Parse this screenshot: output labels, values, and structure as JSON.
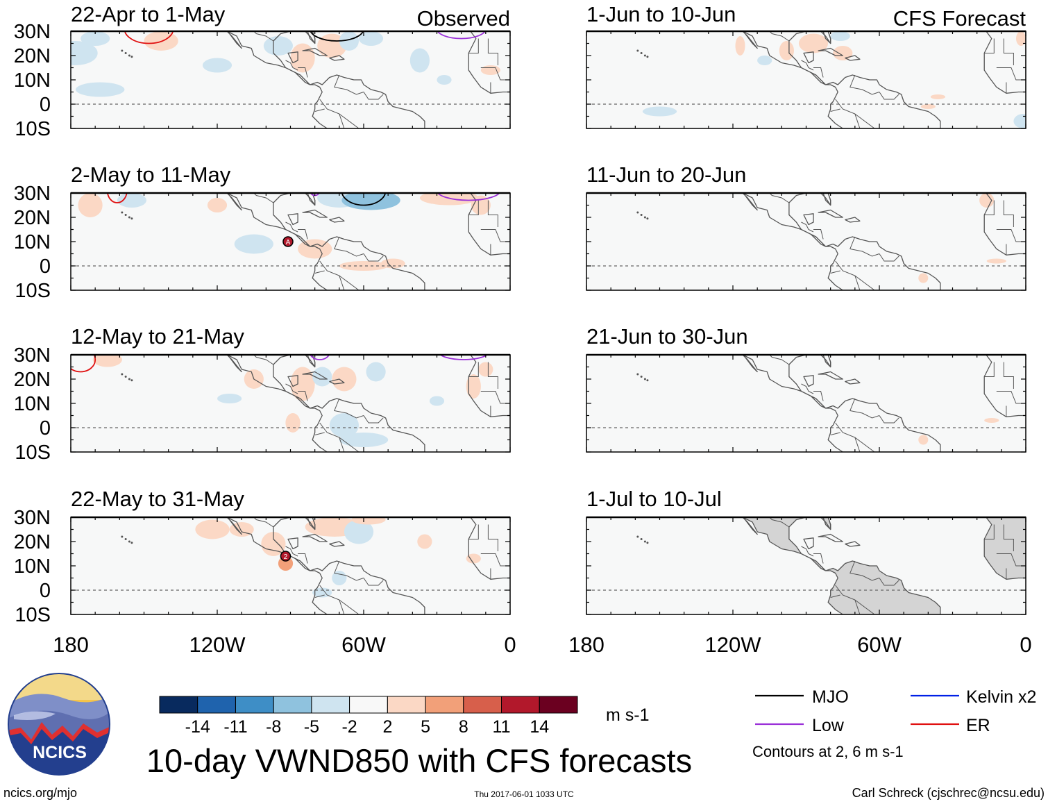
{
  "chart_data": {
    "type": "heatmap",
    "title": "10-day VWND850 with CFS forecasts",
    "variable": "VWND850",
    "units": "m s-1",
    "columns": [
      {
        "name": "Observed",
        "panels": [
          {
            "label": "22-Apr to 1-May",
            "anomalies": [
              {
                "lon": -178,
                "lat": 21,
                "rx": 9,
                "ry": 5,
                "value": -4
              },
              {
                "lon": -170,
                "lat": 27,
                "rx": 6,
                "ry": 3,
                "value": -3
              },
              {
                "lon": -168,
                "lat": 6,
                "rx": 10,
                "ry": 3,
                "value": -3
              },
              {
                "lon": -143,
                "lat": 26,
                "rx": 7,
                "ry": 4,
                "value": 4
              },
              {
                "lon": -120,
                "lat": 16,
                "rx": 6,
                "ry": 3,
                "value": -3
              },
              {
                "lon": -95,
                "lat": 24,
                "rx": 6,
                "ry": 4,
                "value": -3
              },
              {
                "lon": -85,
                "lat": 19,
                "rx": 5,
                "ry": 6,
                "value": 5
              },
              {
                "lon": -73,
                "lat": 24,
                "rx": 6,
                "ry": 5,
                "value": 4
              },
              {
                "lon": -66,
                "lat": 26,
                "rx": 4,
                "ry": 4,
                "value": -3
              },
              {
                "lon": -57,
                "lat": 27,
                "rx": 5,
                "ry": 3,
                "value": -3
              },
              {
                "lon": -37,
                "lat": 18,
                "rx": 4,
                "ry": 5,
                "value": -3
              },
              {
                "lon": -27,
                "lat": 10,
                "rx": 3,
                "ry": 2,
                "value": -2
              },
              {
                "lon": -8,
                "lat": 14,
                "rx": 4,
                "ry": 2,
                "value": 3
              }
            ],
            "contours": [
              {
                "type": "ER",
                "lon": -148,
                "lat": 31,
                "rx": 10,
                "ry": 6
              },
              {
                "type": "MJO",
                "lon": -71,
                "lat": 31,
                "rx": 11,
                "ry": 5
              },
              {
                "type": "Low",
                "lon": -20,
                "lat": 31,
                "rx": 10,
                "ry": 4
              }
            ]
          },
          {
            "label": "2-May to 11-May",
            "anomalies": [
              {
                "lon": -172,
                "lat": 25,
                "rx": 5,
                "ry": 5,
                "value": 5
              },
              {
                "lon": -155,
                "lat": 27,
                "rx": 6,
                "ry": 3,
                "value": -3
              },
              {
                "lon": -120,
                "lat": 25,
                "rx": 4,
                "ry": 3,
                "value": 3
              },
              {
                "lon": -105,
                "lat": 9,
                "rx": 8,
                "ry": 4,
                "value": -3
              },
              {
                "lon": -80,
                "lat": 7,
                "rx": 7,
                "ry": 4,
                "value": 4
              },
              {
                "lon": -70,
                "lat": 28,
                "rx": 9,
                "ry": 4,
                "value": -4
              },
              {
                "lon": -57,
                "lat": 27,
                "rx": 12,
                "ry": 4,
                "value": -5
              },
              {
                "lon": -60,
                "lat": 0,
                "rx": 10,
                "ry": 2,
                "value": 3
              },
              {
                "lon": -48,
                "lat": 1,
                "rx": 5,
                "ry": 2,
                "value": 3
              },
              {
                "lon": -25,
                "lat": 28,
                "rx": 12,
                "ry": 3,
                "value": 4
              },
              {
                "lon": -12,
                "lat": 25,
                "rx": 4,
                "ry": 4,
                "value": 5
              }
            ],
            "contours": [
              {
                "type": "ER",
                "lon": -161,
                "lat": 31,
                "rx": 4,
                "ry": 5
              },
              {
                "type": "MJO",
                "lon": -60,
                "lat": 31,
                "rx": 9,
                "ry": 6
              },
              {
                "type": "Low",
                "lon": -80,
                "lat": 31,
                "rx": 2,
                "ry": 2
              },
              {
                "type": "Low",
                "lon": -17,
                "lat": 31,
                "rx": 13,
                "ry": 4
              }
            ]
          },
          {
            "label": "12-May to 21-May",
            "anomalies": [
              {
                "lon": -165,
                "lat": 28,
                "rx": 6,
                "ry": 3,
                "value": 4
              },
              {
                "lon": -105,
                "lat": 20,
                "rx": 4,
                "ry": 4,
                "value": 4
              },
              {
                "lon": -115,
                "lat": 12,
                "rx": 5,
                "ry": 2,
                "value": -3
              },
              {
                "lon": -89,
                "lat": 2,
                "rx": 3,
                "ry": 4,
                "value": 4
              },
              {
                "lon": -85,
                "lat": 18,
                "rx": 5,
                "ry": 7,
                "value": 5
              },
              {
                "lon": -77,
                "lat": 21,
                "rx": 4,
                "ry": 4,
                "value": -3
              },
              {
                "lon": -68,
                "lat": 20,
                "rx": 5,
                "ry": 5,
                "value": 4
              },
              {
                "lon": -68,
                "lat": 1,
                "rx": 6,
                "ry": 5,
                "value": -3
              },
              {
                "lon": -60,
                "lat": -5,
                "rx": 10,
                "ry": 3,
                "value": -3
              },
              {
                "lon": -55,
                "lat": 23,
                "rx": 4,
                "ry": 4,
                "value": -3
              },
              {
                "lon": -15,
                "lat": 17,
                "rx": 3,
                "ry": 5,
                "value": 4
              },
              {
                "lon": -10,
                "lat": 24,
                "rx": 3,
                "ry": 3,
                "value": 3
              },
              {
                "lon": -30,
                "lat": 11,
                "rx": 3,
                "ry": 2,
                "value": -2
              }
            ],
            "contours": [
              {
                "type": "ER",
                "lon": -176,
                "lat": 28,
                "rx": 6,
                "ry": 5
              },
              {
                "type": "Low",
                "lon": -78,
                "lat": 31,
                "rx": 4,
                "ry": 3
              },
              {
                "type": "Low",
                "lon": -19,
                "lat": 31,
                "rx": 10,
                "ry": 3
              }
            ]
          },
          {
            "label": "22-May to 31-May",
            "anomalies": [
              {
                "lon": -122,
                "lat": 25,
                "rx": 7,
                "ry": 4,
                "value": 4
              },
              {
                "lon": -110,
                "lat": 25,
                "rx": 5,
                "ry": 3,
                "value": 3
              },
              {
                "lon": -97,
                "lat": 19,
                "rx": 5,
                "ry": 5,
                "value": 5
              },
              {
                "lon": -92,
                "lat": 11,
                "rx": 3,
                "ry": 3,
                "value": 6
              },
              {
                "lon": -72,
                "lat": 26,
                "rx": 12,
                "ry": 4,
                "value": 4
              },
              {
                "lon": -62,
                "lat": 24,
                "rx": 6,
                "ry": 5,
                "value": -3
              },
              {
                "lon": -58,
                "lat": 29,
                "rx": 7,
                "ry": 2,
                "value": 3
              },
              {
                "lon": -70,
                "lat": 5,
                "rx": 3,
                "ry": 3,
                "value": -3
              },
              {
                "lon": -77,
                "lat": -1,
                "rx": 4,
                "ry": 2,
                "value": -3
              },
              {
                "lon": -35,
                "lat": 20,
                "rx": 3,
                "ry": 3,
                "value": 3
              },
              {
                "lon": -15,
                "lat": 13,
                "rx": 3,
                "ry": 2,
                "value": 4
              }
            ],
            "contours": []
          }
        ]
      },
      {
        "name": "CFS Forecast",
        "panels": [
          {
            "label": "1-Jun to 10-Jun",
            "anomalies": [
              {
                "lon": -117,
                "lat": 24,
                "rx": 2,
                "ry": 4,
                "value": 4
              },
              {
                "lon": -107,
                "lat": 18,
                "rx": 3,
                "ry": 2,
                "value": -3
              },
              {
                "lon": -98,
                "lat": 22,
                "rx": 3,
                "ry": 4,
                "value": 3
              },
              {
                "lon": -87,
                "lat": 25,
                "rx": 6,
                "ry": 4,
                "value": 4
              },
              {
                "lon": -76,
                "lat": 28,
                "rx": 4,
                "ry": 2,
                "value": -3
              },
              {
                "lon": -75,
                "lat": 21,
                "rx": 4,
                "ry": 3,
                "value": 3
              },
              {
                "lon": -36,
                "lat": 3,
                "rx": 3,
                "ry": 1,
                "value": 3
              },
              {
                "lon": -40,
                "lat": -1,
                "rx": 3,
                "ry": 1,
                "value": 3
              },
              {
                "lon": -150,
                "lat": -3,
                "rx": 7,
                "ry": 2,
                "value": -3
              },
              {
                "lon": -1,
                "lat": -7,
                "rx": 4,
                "ry": 3,
                "value": -3
              },
              {
                "lon": -2,
                "lat": 27,
                "rx": 2,
                "ry": 3,
                "value": 3
              }
            ],
            "contours": []
          },
          {
            "label": "11-Jun to 20-Jun",
            "anomalies": [
              {
                "lon": -16,
                "lat": 27,
                "rx": 3,
                "ry": 3,
                "value": 3
              },
              {
                "lon": -12,
                "lat": 2,
                "rx": 4,
                "ry": 1,
                "value": 3
              },
              {
                "lon": -42,
                "lat": -5,
                "rx": 2,
                "ry": 2,
                "value": 3
              }
            ],
            "contours": []
          },
          {
            "label": "21-Jun to 30-Jun",
            "anomalies": [
              {
                "lon": -14,
                "lat": 3,
                "rx": 3,
                "ry": 1,
                "value": 3
              },
              {
                "lon": -42,
                "lat": -5,
                "rx": 2,
                "ry": 2,
                "value": 3
              }
            ],
            "contours": []
          },
          {
            "label": "1-Jul to 10-Jul",
            "anomalies": [],
            "contours": [],
            "land_masked": true
          }
        ]
      }
    ],
    "x_axis": {
      "ticks": [
        -180,
        -120,
        -60,
        0
      ],
      "tick_labels": [
        "180",
        "120W",
        "60W",
        "0"
      ],
      "lim": [
        -180,
        0
      ]
    },
    "y_axis": {
      "ticks": [
        30,
        20,
        10,
        0,
        -10
      ],
      "tick_labels": [
        "30N",
        "20N",
        "10N",
        "0",
        "10S"
      ],
      "lim": [
        -10,
        30
      ]
    },
    "colorbar": {
      "colors": [
        "#082a5e",
        "#1f63ad",
        "#3e8ec6",
        "#8fc2de",
        "#cfe4f0",
        "#f8f8f8",
        "#fbd8c5",
        "#f2a079",
        "#d75f4b",
        "#b2182b",
        "#6b0020"
      ],
      "tick_labels": [
        "-14",
        "-11",
        "-8",
        "-5",
        "-2",
        "2",
        "5",
        "8",
        "11",
        "14"
      ],
      "units_label": "m s-1"
    },
    "legend": {
      "items": [
        {
          "label": "MJO",
          "color": "#000000"
        },
        {
          "label": "Kelvin x2",
          "color": "#0020e6"
        },
        {
          "label": "Low",
          "color": "#9a30d8"
        },
        {
          "label": "ER",
          "color": "#e01010"
        }
      ],
      "note": "Contours at 2, 6 m s-1"
    },
    "storms": [
      {
        "panel_column": 0,
        "panel_row": 1,
        "lon": -91,
        "lat": 10,
        "label": "A"
      },
      {
        "panel_column": 0,
        "panel_row": 3,
        "lon": -92,
        "lat": 14,
        "label": "2"
      }
    ]
  },
  "branding": {
    "logo_text": "NCICS",
    "url": "ncics.org/mjo",
    "timestamp": "Thu 2017-06-01 1033 UTC",
    "author": "Carl Schreck (cjschrec@ncsu.edu)"
  },
  "colors": {
    "background": "#f7f8f8",
    "land_outline": "#555555",
    "land_fill": "#d4d4d4",
    "accent_logo": "#1d3a8a"
  }
}
